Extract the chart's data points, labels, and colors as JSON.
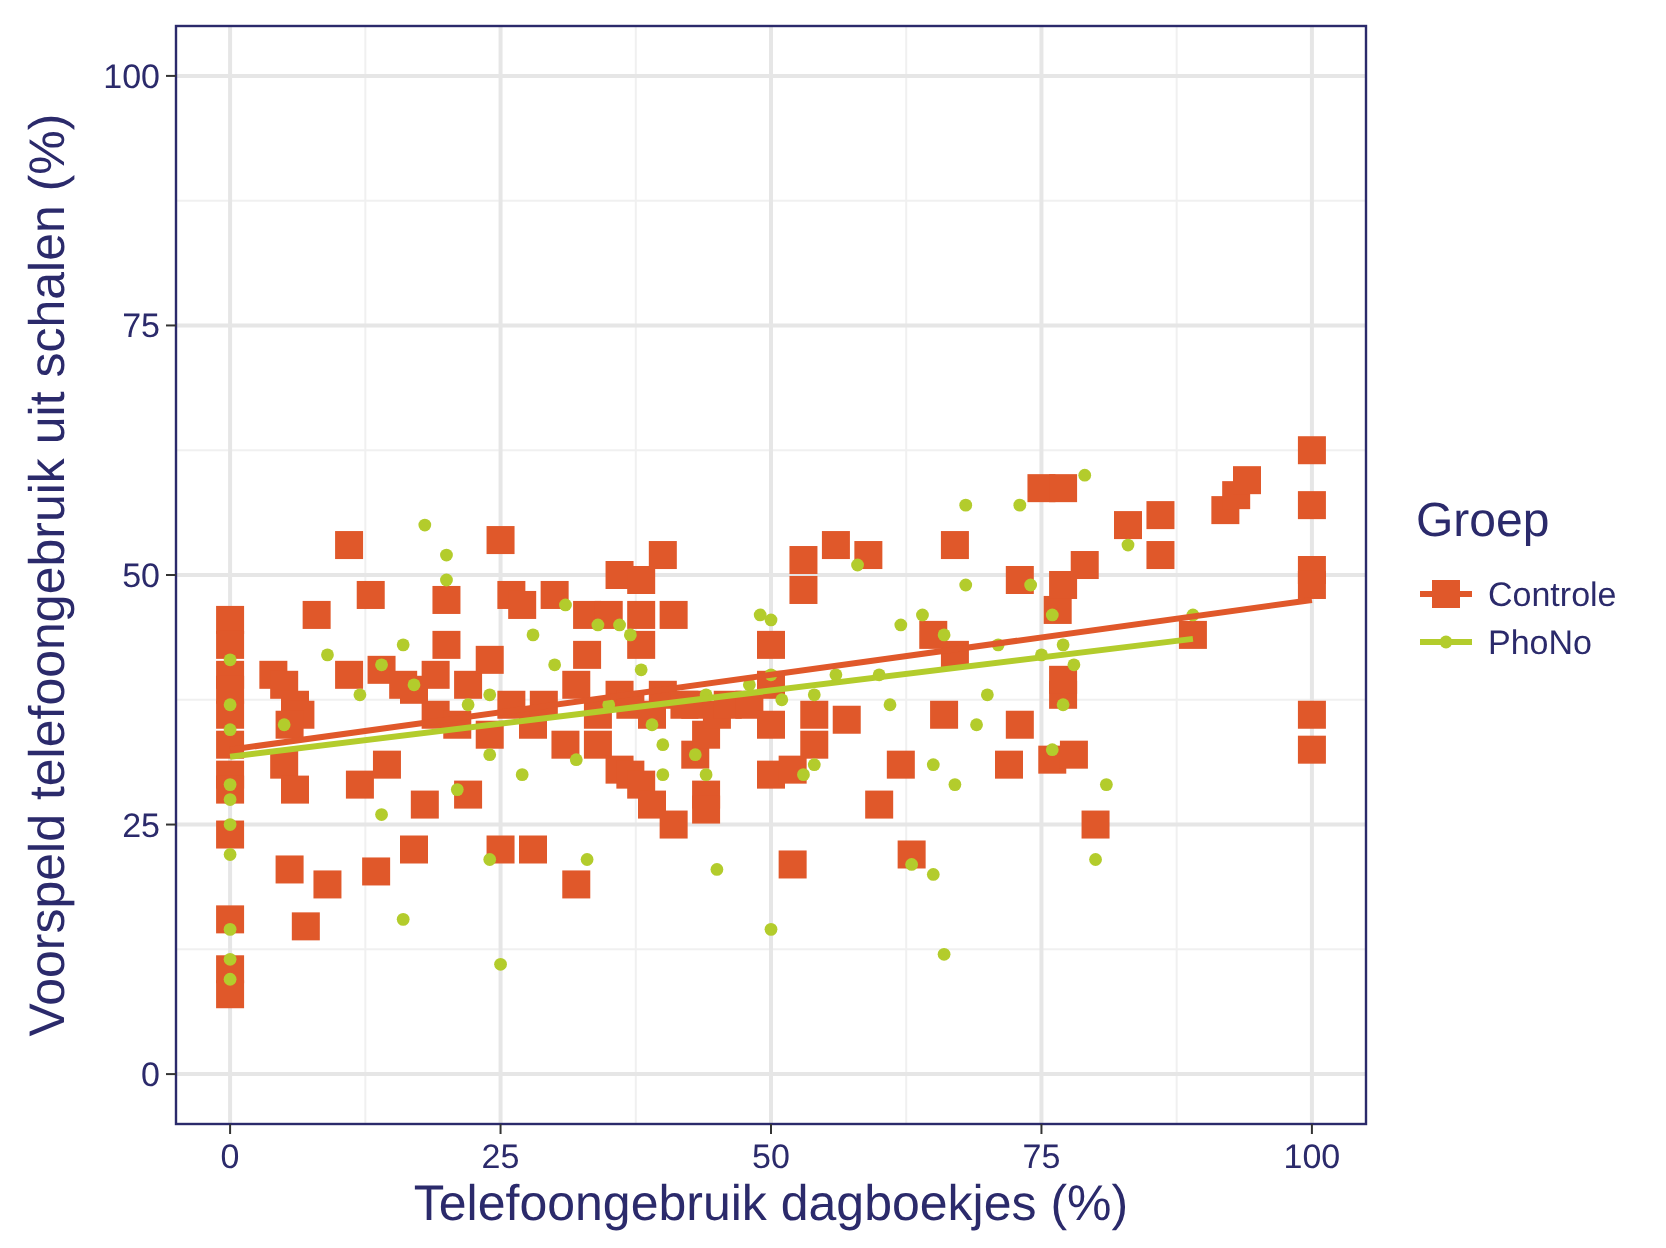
{
  "chart_data": {
    "type": "scatter",
    "xlabel": "Telefoongebruik dagboekjes (%)",
    "ylabel": "Voorspeld telefoongebruik uit schalen (%)",
    "legend_title": "Groep",
    "legend": "right",
    "grid": true,
    "xlim": [
      -5,
      105
    ],
    "ylim": [
      -5,
      105
    ],
    "xticks": [
      0,
      25,
      50,
      75,
      100
    ],
    "yticks": [
      0,
      25,
      50,
      75,
      100
    ],
    "series": [
      {
        "name": "Controle",
        "marker": "square",
        "color": "#e0582a",
        "x": [
          0,
          0,
          0,
          0,
          0,
          0,
          0,
          0,
          0,
          0,
          0,
          0,
          4,
          5,
          6,
          6.5,
          5.5,
          5,
          6,
          5.5,
          7,
          8,
          9,
          11,
          11,
          12,
          13,
          13.5,
          14,
          14.5,
          16,
          17,
          17,
          18,
          19,
          19,
          20,
          20,
          21,
          22,
          22,
          24,
          24,
          25,
          25,
          26,
          26,
          27,
          28,
          28,
          29,
          30,
          31,
          32,
          32,
          33,
          33,
          34,
          34,
          35,
          36,
          36,
          36,
          37,
          37,
          38,
          38,
          38,
          38,
          39,
          39,
          40,
          40,
          41,
          41,
          42,
          43,
          43,
          44,
          44,
          44,
          45,
          46,
          48,
          50,
          50,
          50,
          50,
          52,
          52,
          53,
          53,
          54,
          54,
          56,
          57,
          59,
          60,
          62,
          63,
          65,
          66,
          67,
          67,
          72,
          73,
          73,
          75,
          76,
          77,
          76.5,
          77,
          77,
          77,
          78,
          79,
          80,
          83,
          86,
          86,
          89,
          92,
          93,
          94,
          100,
          100,
          100,
          100,
          100,
          100
        ],
        "values": [
          45.5,
          43,
          40,
          38.5,
          36,
          33,
          30,
          28.5,
          24,
          15.5,
          10.5,
          8,
          40,
          39,
          37,
          36,
          35,
          31,
          28.5,
          20.5,
          14.8,
          46,
          19,
          53,
          40,
          29,
          48,
          20.3,
          40.5,
          31,
          39,
          38.5,
          22.5,
          27,
          36,
          40,
          43,
          47.5,
          35,
          28,
          39,
          41.5,
          34,
          22.5,
          53.5,
          48,
          37,
          47,
          22.5,
          35,
          37,
          48,
          33,
          39,
          19,
          42,
          46,
          36,
          33,
          46,
          38,
          50,
          30.5,
          30,
          37,
          46,
          49.5,
          43,
          29,
          27,
          36,
          52,
          38,
          25,
          46,
          37,
          37,
          32,
          28,
          26.5,
          34,
          36,
          37,
          37,
          43,
          39,
          35,
          30,
          30.5,
          21,
          48.5,
          51.5,
          36,
          33,
          53,
          35.5,
          52,
          27,
          31,
          22,
          44,
          36,
          42,
          53,
          31,
          35,
          49.5,
          58.7,
          31.5,
          58.7,
          46.5,
          49,
          38,
          39.5,
          32,
          51,
          25,
          55,
          52,
          56,
          44,
          56.5,
          58,
          59.5,
          62.5,
          57,
          50.5,
          49,
          36,
          32.5
        ]
      },
      {
        "name": "PhoNo",
        "marker": "circle",
        "color": "#b3cc2c",
        "x": [
          0,
          0,
          0,
          0,
          0,
          0,
          0,
          0,
          0,
          0,
          18,
          20,
          20,
          14,
          16,
          17,
          24,
          24,
          27,
          21,
          24,
          25,
          14,
          16,
          32,
          33,
          31,
          34,
          35,
          36,
          37,
          38,
          39,
          40,
          40,
          43,
          44,
          44,
          45,
          48,
          49,
          50,
          50,
          50,
          51,
          53,
          54,
          54,
          56,
          58,
          60,
          61,
          62,
          63,
          64,
          65,
          65,
          66,
          66,
          67,
          68,
          68,
          69,
          70,
          71,
          73,
          74,
          75,
          76,
          76,
          77,
          77,
          78,
          79,
          81,
          83,
          80,
          89,
          5,
          9,
          12,
          22,
          28,
          30
        ],
        "values": [
          41.5,
          37,
          34.5,
          29,
          27.5,
          25,
          22,
          14.5,
          11.5,
          9.5,
          55,
          52,
          49.5,
          41,
          43,
          39,
          38,
          32,
          30,
          28.5,
          21.5,
          11,
          26,
          15.5,
          31.5,
          21.5,
          47,
          45,
          37,
          45,
          44,
          40.5,
          35,
          33,
          30,
          32,
          38,
          30,
          20.5,
          39,
          46,
          45.5,
          40,
          14.5,
          37.5,
          30,
          38,
          31,
          40,
          51,
          40,
          37,
          45,
          21,
          46,
          31,
          20,
          44,
          12,
          29,
          57,
          49,
          35,
          38,
          43,
          57,
          49,
          42,
          46,
          32.5,
          37,
          43,
          41,
          60,
          29,
          53,
          21.5,
          46,
          35,
          42,
          38,
          37,
          44,
          41
        ]
      },
      {
        "type": "line",
        "color": "#e0582a",
        "x": [
          0,
          100
        ],
        "values": [
          32.5,
          47.5
        ]
      },
      {
        "type": "line",
        "color": "#b3cc2c",
        "x": [
          0,
          89
        ],
        "values": [
          31.8,
          43.6
        ]
      }
    ]
  }
}
